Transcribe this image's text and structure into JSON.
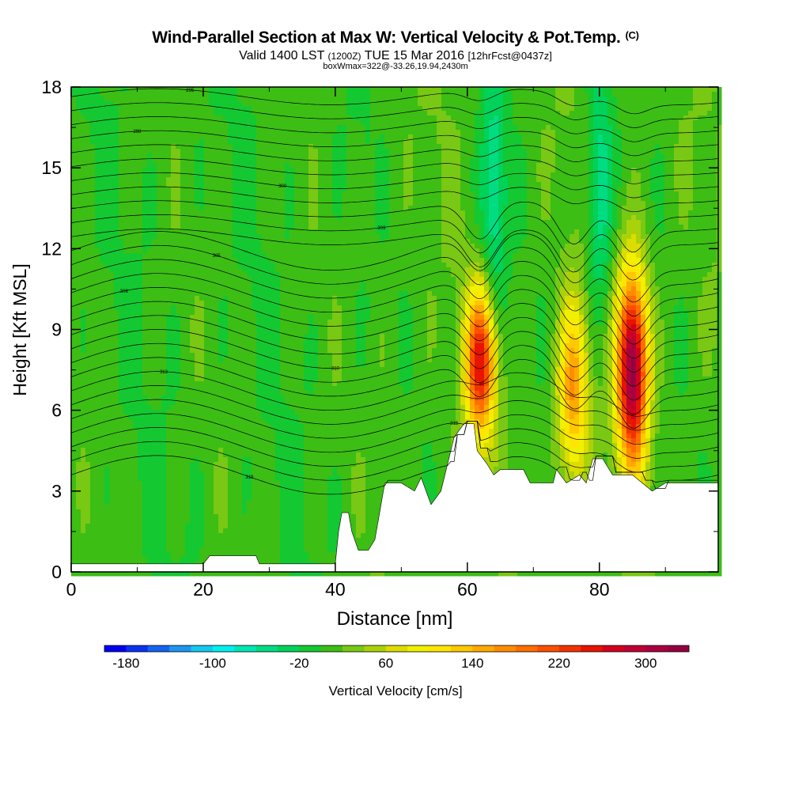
{
  "header": {
    "title": "Wind-Parallel Section at Max W: Vertical Velocity & Pot.Temp.",
    "title_mark": "(C)",
    "valid_prefix": "Valid 1400 LST",
    "valid_zulu": "(1200Z)",
    "valid_date": "TUE 15 Mar 2016",
    "valid_fcst": "[12hrFcst@0437z]",
    "boxwmax": "boxWmax=322@-33.26,19.94,2430m"
  },
  "chart_data": {
    "type": "heatmap",
    "title": "Wind-Parallel Section at Max W: Vertical Velocity & Pot.Temp.",
    "xlabel": "Distance [nm]",
    "ylabel": "Height [Kft MSL]",
    "xlim": [
      0,
      98
    ],
    "ylim": [
      0,
      18
    ],
    "x_ticks": [
      "0",
      "20",
      "40",
      "60",
      "80"
    ],
    "y_ticks": [
      "0",
      "3",
      "6",
      "9",
      "12",
      "15",
      "18"
    ],
    "colorbar": {
      "label": "Vertical Velocity [cm/s]",
      "tick_labels": [
        "-180",
        "-100",
        "-20",
        "60",
        "140",
        "220",
        "300"
      ],
      "min": -200,
      "max": 340,
      "step": 20,
      "colors": [
        "#0000f0",
        "#0a32f0",
        "#1464f0",
        "#1e96f0",
        "#14c8f0",
        "#00f0f0",
        "#00e6b4",
        "#00dc82",
        "#00d25a",
        "#14c832",
        "#3cbe14",
        "#78c814",
        "#aad20a",
        "#dcdc00",
        "#f0f000",
        "#ffe600",
        "#ffc800",
        "#ffaa00",
        "#ff8c00",
        "#ff6e00",
        "#fa5000",
        "#f03200",
        "#e61400",
        "#d2001e",
        "#be0032",
        "#aa0040",
        "#960040"
      ]
    },
    "features": [
      {
        "kind": "updraft",
        "x": 62,
        "z_bottom": 5.5,
        "z_top": 10,
        "peak_w": 240
      },
      {
        "kind": "updraft",
        "x": 76,
        "z_bottom": 4,
        "z_top": 9.5,
        "peak_w": 150
      },
      {
        "kind": "updraft",
        "x": 85,
        "z_bottom": 4.5,
        "z_top": 10.5,
        "peak_w": 322
      },
      {
        "kind": "downdraft",
        "x": 64,
        "z_bottom": 10,
        "z_top": 18,
        "peak_w": -70
      },
      {
        "kind": "downdraft",
        "x": 80,
        "z_bottom": 10,
        "z_top": 18,
        "peak_w": -70
      }
    ],
    "terrain_top_kft": [
      [
        0,
        0.3
      ],
      [
        20,
        0.3
      ],
      [
        21,
        0.6
      ],
      [
        28,
        0.6
      ],
      [
        28.5,
        0.3
      ],
      [
        40,
        0.3
      ],
      [
        40.5,
        1.5
      ],
      [
        41,
        2.2
      ],
      [
        42,
        2.2
      ],
      [
        42.5,
        1.5
      ],
      [
        43.5,
        0.8
      ],
      [
        45,
        0.8
      ],
      [
        46,
        1.2
      ],
      [
        47.5,
        3.3
      ],
      [
        50,
        3.3
      ],
      [
        52,
        3.0
      ],
      [
        53,
        3.5
      ],
      [
        54.5,
        2.5
      ],
      [
        56,
        3.0
      ],
      [
        57,
        4.0
      ],
      [
        58,
        5.0
      ],
      [
        59.5,
        5.5
      ],
      [
        61,
        5.5
      ],
      [
        61.5,
        4.5
      ],
      [
        63,
        4.0
      ],
      [
        64,
        3.6
      ],
      [
        65,
        3.8
      ],
      [
        68.5,
        3.8
      ],
      [
        69.5,
        3.3
      ],
      [
        73,
        3.3
      ],
      [
        73.5,
        3.8
      ],
      [
        75,
        3.3
      ],
      [
        77,
        3.6
      ],
      [
        78,
        3.3
      ],
      [
        79,
        4.2
      ],
      [
        80.5,
        4.2
      ],
      [
        82,
        3.6
      ],
      [
        85,
        3.6
      ],
      [
        86.5,
        3.3
      ],
      [
        88,
        3.0
      ],
      [
        90,
        3.3
      ],
      [
        98,
        3.3
      ]
    ],
    "theta_contour_labels": [
      "318",
      "315",
      "313",
      "310",
      "308",
      "305",
      "303",
      "300",
      "298",
      "295"
    ]
  }
}
